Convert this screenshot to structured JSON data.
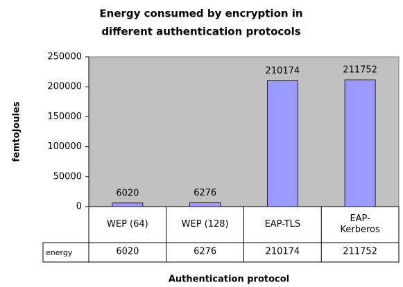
{
  "chart_data": {
    "type": "bar",
    "title": [
      "Energy consumed by encryption in",
      "different authentication protocols"
    ],
    "y_label": "femtoJoules",
    "x_label": "Authentication protocol",
    "categories": [
      "WEP (64)",
      "WEP (128)",
      "EAP-TLS",
      "EAP-Kerberos"
    ],
    "series": [
      {
        "name": "energy",
        "color": "#9999ff",
        "values": [
          6020,
          6276,
          210174,
          211752
        ]
      }
    ],
    "ylim": [
      0,
      250000
    ],
    "yticks": [
      0,
      50000,
      100000,
      150000,
      200000,
      250000
    ]
  }
}
